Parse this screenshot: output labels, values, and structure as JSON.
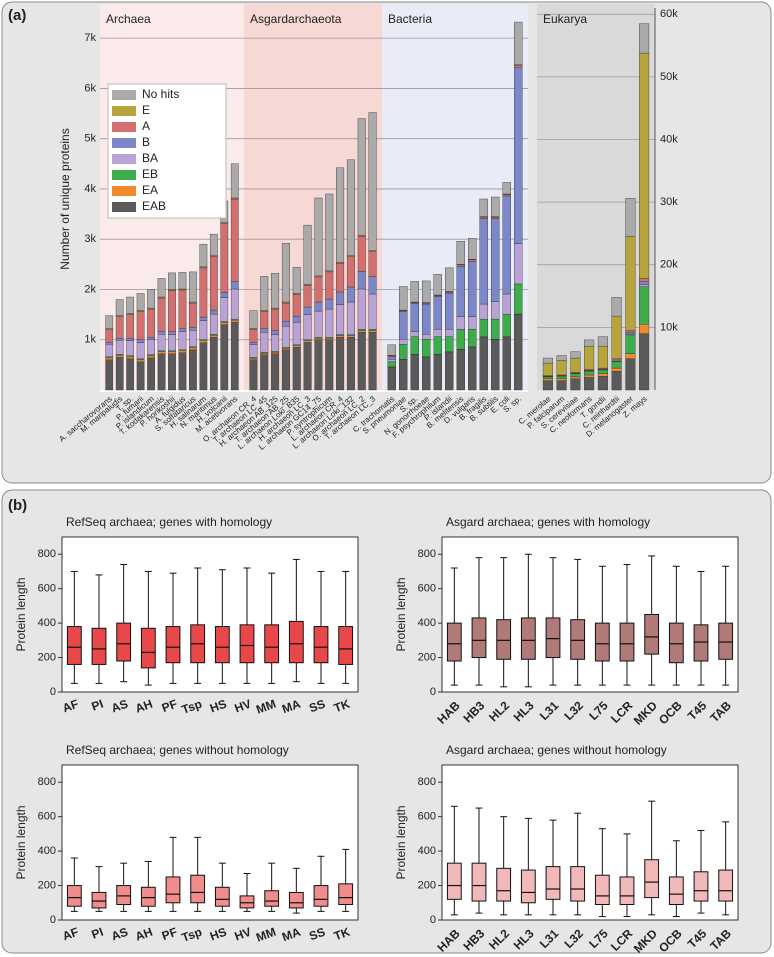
{
  "panel_labels": [
    "(a)",
    "(b)"
  ],
  "chart_data": [
    {
      "type": "stacked_bar",
      "ylabel": "Number of unique proteins",
      "ylim": [
        0,
        7600
      ],
      "yticks": [
        {
          "value": 1000,
          "label": "1k"
        },
        {
          "value": 2000,
          "label": "2k"
        },
        {
          "value": 3000,
          "label": "3k"
        },
        {
          "value": 4000,
          "label": "4k"
        },
        {
          "value": 5000,
          "label": "5k"
        },
        {
          "value": 6000,
          "label": "6k"
        },
        {
          "value": 7000,
          "label": "7k"
        }
      ],
      "y2lim": [
        0,
        61000
      ],
      "y2ticks": [
        {
          "value": 10000,
          "label": "10k"
        },
        {
          "value": 20000,
          "label": "20k"
        },
        {
          "value": 30000,
          "label": "30k"
        },
        {
          "value": 40000,
          "label": "40k"
        },
        {
          "value": 50000,
          "label": "50k"
        },
        {
          "value": 60000,
          "label": "60k"
        }
      ],
      "grid": true,
      "legend": "upper left",
      "groups": [
        {
          "label": "Archaea",
          "categories": [
            "A. saccharovorans",
            "M. maripaludis",
            "T. sp.",
            "P. fumarii",
            "P. islandicum",
            "T. kodakarensis",
            "P. horikoshii",
            "A. fulgidus",
            "S. solfataricus",
            "H. salinarum",
            "N. maritimus",
            "H. volcanii",
            "M. acetivorans"
          ]
        },
        {
          "label": "Asgardarchaeota",
          "categories": [
            "O. archaeon CR_4",
            "T. archaeon LC_45",
            "H. archaeon AB_125",
            "T. archaeon AB_25",
            "L. archaeon Loki_B35",
            "H. archaeon LC_3",
            "L. archaeon GC14_75",
            "P. syntrophicum",
            "L. archaeon CR_4",
            "L. archaeon Loki_132",
            "O. archaeon LC_2",
            "T. archaeon LC_3"
          ]
        },
        {
          "label": "Bacteria",
          "categories": [
            "C. trachomatis",
            "S. pneumoniae",
            "S. sp.",
            "N. gonorrhoeae",
            "F. psychrophilum",
            "P. islandii",
            "B. melitensis",
            "D. vulgaris",
            "B. fragilis",
            "B. subtilis",
            "E. coli",
            "S. sp."
          ]
        },
        {
          "label": "Eukarya",
          "axis": "y2",
          "categories": [
            "C. merolae",
            "P. falciparum",
            "S. cerevisiae",
            "C. neoformans",
            "T. gondii",
            "C. reinhardtii",
            "D. melanogaster",
            "Z. mays"
          ]
        }
      ],
      "series": [
        {
          "name": "EAB",
          "color": "#5a5a5a",
          "values": [
            600,
            650,
            620,
            560,
            640,
            720,
            720,
            740,
            800,
            940,
            1050,
            1300,
            1350,
            600,
            700,
            720,
            800,
            850,
            950,
            1000,
            1000,
            1050,
            1050,
            1150,
            1150,
            450,
            600,
            700,
            650,
            700,
            750,
            800,
            850,
            1050,
            1000,
            1050,
            1500,
            1500,
            1500,
            1800,
            2000,
            2200,
            3000,
            5000,
            9000
          ]
        },
        {
          "name": "EA",
          "color": "#f08a2c",
          "values": [
            40,
            40,
            40,
            40,
            40,
            40,
            40,
            40,
            40,
            40,
            40,
            40,
            40,
            30,
            30,
            30,
            30,
            30,
            30,
            30,
            30,
            30,
            30,
            30,
            30,
            10,
            10,
            10,
            10,
            10,
            10,
            10,
            10,
            10,
            10,
            10,
            10,
            300,
            300,
            300,
            400,
            400,
            500,
            800,
            1500
          ]
        },
        {
          "name": "EB",
          "color": "#3cad4a",
          "values": [
            20,
            20,
            20,
            20,
            20,
            20,
            20,
            20,
            20,
            20,
            20,
            20,
            20,
            20,
            20,
            20,
            20,
            20,
            20,
            20,
            20,
            20,
            20,
            30,
            30,
            100,
            300,
            350,
            350,
            350,
            300,
            400,
            350,
            350,
            400,
            450,
            600,
            300,
            400,
            500,
            600,
            600,
            1000,
            3000,
            6000
          ]
        },
        {
          "name": "BA",
          "color": "#b9a2d6",
          "values": [
            250,
            280,
            300,
            320,
            300,
            330,
            320,
            360,
            330,
            380,
            400,
            480,
            600,
            250,
            400,
            330,
            420,
            450,
            500,
            520,
            560,
            600,
            650,
            800,
            700,
            50,
            100,
            100,
            100,
            150,
            150,
            250,
            250,
            300,
            350,
            400,
            800,
            50,
            50,
            50,
            50,
            50,
            100,
            150,
            300
          ]
        },
        {
          "name": "B",
          "color": "#7b87c9",
          "values": [
            40,
            40,
            50,
            60,
            50,
            60,
            60,
            60,
            60,
            70,
            80,
            100,
            150,
            50,
            80,
            80,
            100,
            120,
            150,
            180,
            200,
            250,
            300,
            350,
            350,
            50,
            550,
            560,
            600,
            650,
            720,
            1000,
            1100,
            1700,
            1650,
            1950,
            3500,
            50,
            50,
            50,
            100,
            100,
            200,
            300,
            500
          ]
        },
        {
          "name": "A",
          "color": "#d26f6f",
          "values": [
            250,
            430,
            470,
            560,
            560,
            660,
            820,
            770,
            480,
            980,
            1070,
            1370,
            1640,
            260,
            330,
            430,
            360,
            430,
            430,
            500,
            540,
            570,
            600,
            700,
            500,
            20,
            20,
            20,
            20,
            20,
            20,
            30,
            30,
            30,
            30,
            30,
            50,
            100,
            100,
            150,
            150,
            150,
            200,
            300,
            500
          ]
        },
        {
          "name": "E",
          "color": "#b8a43c",
          "values": [
            20,
            20,
            20,
            20,
            20,
            20,
            20,
            20,
            20,
            20,
            20,
            20,
            20,
            20,
            20,
            20,
            20,
            20,
            20,
            20,
            20,
            20,
            20,
            20,
            20,
            10,
            10,
            10,
            10,
            10,
            10,
            10,
            10,
            10,
            10,
            10,
            10,
            2000,
            2300,
            2250,
            3700,
            3500,
            6800,
            15000,
            36000
          ]
        },
        {
          "name": "No hits",
          "color": "#aaaaaa",
          "values": [
            260,
            320,
            330,
            340,
            370,
            370,
            330,
            330,
            600,
            450,
            420,
            430,
            680,
            350,
            680,
            690,
            1170,
            520,
            1180,
            1550,
            1530,
            1880,
            1910,
            2320,
            2740,
            210,
            470,
            410,
            430,
            410,
            470,
            460,
            420,
            350,
            390,
            230,
            850,
            800,
            800,
            1000,
            1000,
            1500,
            3000,
            6050,
            4700
          ]
        }
      ]
    },
    {
      "type": "box",
      "title": "RefSeq archaea; genes with homology",
      "ylabel": "Protein length",
      "color": "#e8484a",
      "ylim": [
        0,
        900
      ],
      "yticks": [
        0,
        200,
        400,
        600,
        800
      ],
      "categories": [
        "AF",
        "PI",
        "AS",
        "AH",
        "PF",
        "Tsp",
        "HS",
        "HV",
        "MM",
        "MA",
        "SS",
        "TK"
      ],
      "min": [
        50,
        50,
        60,
        40,
        50,
        50,
        50,
        50,
        50,
        60,
        50,
        50
      ],
      "q1": [
        160,
        160,
        180,
        140,
        170,
        170,
        170,
        170,
        170,
        170,
        170,
        160
      ],
      "median": [
        260,
        250,
        280,
        230,
        260,
        280,
        260,
        270,
        260,
        280,
        260,
        250
      ],
      "q3": [
        380,
        370,
        400,
        370,
        380,
        390,
        380,
        390,
        390,
        410,
        380,
        380
      ],
      "max": [
        700,
        680,
        740,
        700,
        690,
        720,
        710,
        720,
        690,
        770,
        700,
        700
      ]
    },
    {
      "type": "box",
      "title": "Asgard archaea; genes with homology",
      "ylabel": "Protein length",
      "color": "#b07a78",
      "ylim": [
        0,
        900
      ],
      "yticks": [
        0,
        200,
        400,
        600,
        800
      ],
      "categories": [
        "HAB",
        "HB3",
        "HL2",
        "HL3",
        "L31",
        "L32",
        "L75",
        "LCR",
        "MKD",
        "OCB",
        "T45",
        "TAB"
      ],
      "min": [
        40,
        40,
        30,
        30,
        40,
        40,
        40,
        40,
        40,
        40,
        40,
        40
      ],
      "q1": [
        180,
        200,
        190,
        190,
        200,
        190,
        180,
        180,
        220,
        170,
        180,
        190
      ],
      "median": [
        280,
        300,
        300,
        300,
        310,
        300,
        280,
        280,
        320,
        280,
        290,
        290
      ],
      "q3": [
        400,
        430,
        420,
        430,
        430,
        420,
        400,
        400,
        450,
        400,
        390,
        400
      ],
      "max": [
        720,
        780,
        780,
        800,
        780,
        770,
        730,
        740,
        790,
        730,
        700,
        730
      ]
    },
    {
      "type": "box",
      "title": "RefSeq archaea; genes without homology",
      "ylabel": "Protein length",
      "color": "#f08c8c",
      "ylim": [
        0,
        900
      ],
      "yticks": [
        0,
        200,
        400,
        600,
        800
      ],
      "categories": [
        "AF",
        "PI",
        "AS",
        "AH",
        "PF",
        "Tsp",
        "HS",
        "HV",
        "MM",
        "MA",
        "SS",
        "TK"
      ],
      "min": [
        50,
        50,
        50,
        50,
        50,
        50,
        50,
        50,
        50,
        40,
        50,
        50
      ],
      "q1": [
        80,
        70,
        90,
        80,
        100,
        100,
        80,
        70,
        80,
        70,
        80,
        90
      ],
      "median": [
        130,
        110,
        140,
        130,
        150,
        160,
        120,
        100,
        110,
        100,
        120,
        130
      ],
      "q3": [
        200,
        160,
        200,
        190,
        250,
        260,
        190,
        140,
        170,
        160,
        200,
        210
      ],
      "max": [
        360,
        310,
        330,
        340,
        480,
        480,
        330,
        270,
        330,
        300,
        370,
        410
      ]
    },
    {
      "type": "box",
      "title": "Asgard archaea; genes without homology",
      "ylabel": "Protein length",
      "color": "#f0b8b8",
      "ylim": [
        0,
        900
      ],
      "yticks": [
        0,
        200,
        400,
        600,
        800
      ],
      "categories": [
        "HAB",
        "HB3",
        "HL2",
        "HL3",
        "L31",
        "L32",
        "L75",
        "LCR",
        "MKD",
        "OCB",
        "T45",
        "TAB"
      ],
      "min": [
        30,
        40,
        30,
        30,
        30,
        30,
        20,
        20,
        30,
        20,
        40,
        30
      ],
      "q1": [
        120,
        110,
        110,
        100,
        120,
        110,
        90,
        90,
        130,
        90,
        110,
        110
      ],
      "median": [
        200,
        200,
        170,
        160,
        180,
        180,
        140,
        140,
        220,
        150,
        170,
        170
      ],
      "q3": [
        330,
        330,
        300,
        290,
        310,
        310,
        260,
        250,
        350,
        250,
        280,
        290
      ],
      "max": [
        660,
        650,
        600,
        590,
        580,
        620,
        530,
        500,
        690,
        460,
        520,
        570
      ]
    }
  ]
}
